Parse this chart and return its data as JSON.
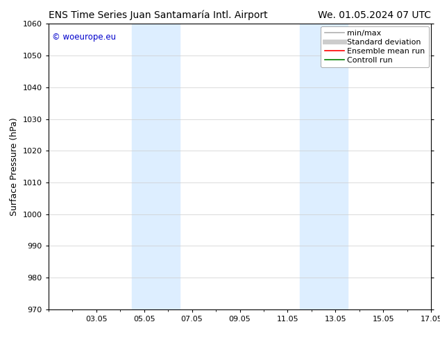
{
  "title_left": "ENS Time Series Juan Santamaría Intl. Airport",
  "title_right": "We. 01.05.2024 07 UTC",
  "ylabel": "Surface Pressure (hPa)",
  "ylim": [
    970,
    1060
  ],
  "yticks": [
    970,
    980,
    990,
    1000,
    1010,
    1020,
    1030,
    1040,
    1050,
    1060
  ],
  "xtick_labels": [
    "03.05",
    "05.05",
    "07.05",
    "09.05",
    "11.05",
    "13.05",
    "15.05",
    "17.05"
  ],
  "xtick_positions": [
    2,
    4,
    6,
    8,
    10,
    12,
    14,
    16
  ],
  "xlim": [
    0,
    16
  ],
  "watermark": "© woeurope.eu",
  "watermark_color": "#0000cc",
  "shaded_regions": [
    {
      "xmin": 3.5,
      "xmax": 5.5,
      "color": "#ddeeff"
    },
    {
      "xmin": 10.5,
      "xmax": 12.5,
      "color": "#ddeeff"
    }
  ],
  "legend_entries": [
    {
      "label": "min/max",
      "color": "#b0b0b0",
      "linewidth": 1.2
    },
    {
      "label": "Standard deviation",
      "color": "#cccccc",
      "linewidth": 5
    },
    {
      "label": "Ensemble mean run",
      "color": "#ff0000",
      "linewidth": 1.2
    },
    {
      "label": "Controll run",
      "color": "#008000",
      "linewidth": 1.2
    }
  ],
  "background_color": "#ffffff",
  "grid_color": "#cccccc",
  "title_fontsize": 10,
  "axis_label_fontsize": 9,
  "tick_fontsize": 8,
  "legend_fontsize": 8,
  "watermark_fontsize": 8.5
}
